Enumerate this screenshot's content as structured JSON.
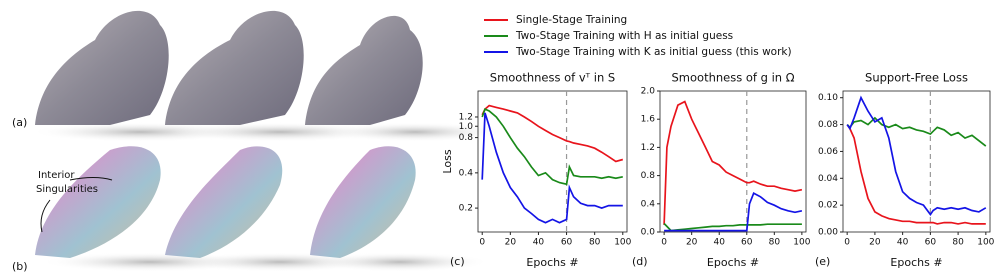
{
  "figure": {
    "panel_a": "(a)",
    "panel_b": "(b)",
    "annotation": [
      "Interior",
      "Singularities"
    ]
  },
  "chart_data": [
    {
      "type": "line",
      "panel": "(c)",
      "title": "Smoothness of vᵀ in S",
      "x_label": "Epochs #",
      "y_label": "Loss",
      "log_y": true,
      "vline": 60,
      "x": [
        0,
        2,
        5,
        10,
        15,
        20,
        25,
        30,
        35,
        40,
        45,
        50,
        55,
        60,
        62,
        65,
        70,
        75,
        80,
        85,
        90,
        95,
        100
      ],
      "xlim": [
        -3,
        103
      ],
      "xticks": [
        0,
        20,
        40,
        60,
        80,
        100
      ],
      "ylim": [
        0.125,
        2.0
      ],
      "yticks": [
        0.2,
        0.4,
        0.8,
        {
          "value": 1.0,
          "label": "1.0"
        },
        1.2
      ],
      "series": [
        {
          "name": "Single-Stage Training",
          "color": "#e8141c",
          "values": [
            1.25,
            1.4,
            1.5,
            1.45,
            1.4,
            1.35,
            1.3,
            1.2,
            1.1,
            1.0,
            0.92,
            0.85,
            0.8,
            0.75,
            0.74,
            0.72,
            0.7,
            0.68,
            0.65,
            0.6,
            0.55,
            0.5,
            0.52
          ]
        },
        {
          "name": "Two-Stage Training with H as initial guess",
          "color": "#1a8a1a",
          "values": [
            1.2,
            1.4,
            1.35,
            1.2,
            1.0,
            0.8,
            0.65,
            0.55,
            0.45,
            0.38,
            0.4,
            0.35,
            0.33,
            0.32,
            0.45,
            0.38,
            0.37,
            0.37,
            0.37,
            0.36,
            0.37,
            0.36,
            0.37
          ]
        },
        {
          "name": "Two-Stage Training with K as initial guess (this work)",
          "color": "#1414e6",
          "values": [
            0.35,
            1.3,
            1.0,
            0.6,
            0.4,
            0.3,
            0.25,
            0.2,
            0.18,
            0.16,
            0.15,
            0.16,
            0.15,
            0.16,
            0.3,
            0.25,
            0.22,
            0.21,
            0.21,
            0.2,
            0.21,
            0.21,
            0.21
          ]
        }
      ]
    },
    {
      "type": "line",
      "panel": "(d)",
      "title": "Smoothness of g in Ω",
      "x_label": "Epochs #",
      "log_y": false,
      "vline": 60,
      "x": [
        0,
        2,
        5,
        10,
        15,
        20,
        25,
        30,
        35,
        40,
        45,
        50,
        55,
        60,
        62,
        65,
        70,
        75,
        80,
        85,
        90,
        95,
        100
      ],
      "xlim": [
        -3,
        103
      ],
      "xticks": [
        0,
        20,
        40,
        60,
        80,
        100
      ],
      "ylim": [
        0,
        2.0
      ],
      "yticks": [
        {
          "value": 0,
          "label": "0.0"
        },
        0.4,
        0.8,
        1.2,
        1.6,
        {
          "value": 2.0,
          "label": "2.0"
        }
      ],
      "series": [
        {
          "color": "#e8141c",
          "values": [
            0.1,
            1.2,
            1.5,
            1.8,
            1.85,
            1.6,
            1.4,
            1.2,
            1.0,
            0.95,
            0.85,
            0.8,
            0.75,
            0.7,
            0.7,
            0.72,
            0.68,
            0.65,
            0.65,
            0.62,
            0.6,
            0.58,
            0.6
          ]
        },
        {
          "color": "#1a8a1a",
          "values": [
            0.12,
            0.08,
            0.02,
            0.03,
            0.04,
            0.05,
            0.06,
            0.07,
            0.08,
            0.08,
            0.09,
            0.09,
            0.1,
            0.1,
            0.1,
            0.1,
            0.1,
            0.11,
            0.11,
            0.11,
            0.11,
            0.11,
            0.11
          ]
        },
        {
          "color": "#1414e6",
          "values": [
            0.02,
            0.02,
            0.02,
            0.02,
            0.02,
            0.02,
            0.02,
            0.02,
            0.02,
            0.02,
            0.02,
            0.02,
            0.02,
            0.02,
            0.4,
            0.55,
            0.5,
            0.42,
            0.38,
            0.33,
            0.3,
            0.28,
            0.3
          ]
        }
      ]
    },
    {
      "type": "line",
      "panel": "(e)",
      "title": "Support-Free Loss",
      "x_label": "Epochs #",
      "log_y": false,
      "vline": 60,
      "x": [
        0,
        2,
        5,
        10,
        15,
        20,
        25,
        30,
        35,
        40,
        45,
        50,
        55,
        60,
        62,
        65,
        70,
        75,
        80,
        85,
        90,
        95,
        100
      ],
      "xlim": [
        -3,
        103
      ],
      "xticks": [
        0,
        20,
        40,
        60,
        80,
        100
      ],
      "ylim": [
        0,
        0.105
      ],
      "yticks": [
        {
          "value": 0,
          "label": "0.00"
        },
        0.02,
        0.04,
        0.06,
        0.08,
        {
          "value": 0.1,
          "label": "0.10"
        }
      ],
      "series": [
        {
          "color": "#e8141c",
          "values": [
            0.08,
            0.077,
            0.07,
            0.045,
            0.025,
            0.015,
            0.012,
            0.01,
            0.009,
            0.008,
            0.008,
            0.007,
            0.007,
            0.007,
            0.007,
            0.006,
            0.007,
            0.007,
            0.006,
            0.007,
            0.006,
            0.006,
            0.006
          ]
        },
        {
          "color": "#1a8a1a",
          "values": [
            0.08,
            0.078,
            0.082,
            0.083,
            0.08,
            0.085,
            0.08,
            0.078,
            0.08,
            0.077,
            0.078,
            0.076,
            0.075,
            0.073,
            0.075,
            0.078,
            0.076,
            0.072,
            0.074,
            0.07,
            0.072,
            0.068,
            0.064
          ]
        },
        {
          "color": "#1414e6",
          "values": [
            0.08,
            0.077,
            0.085,
            0.1,
            0.09,
            0.082,
            0.085,
            0.07,
            0.045,
            0.03,
            0.025,
            0.022,
            0.02,
            0.013,
            0.016,
            0.018,
            0.017,
            0.018,
            0.017,
            0.018,
            0.016,
            0.015,
            0.018
          ]
        }
      ]
    }
  ]
}
